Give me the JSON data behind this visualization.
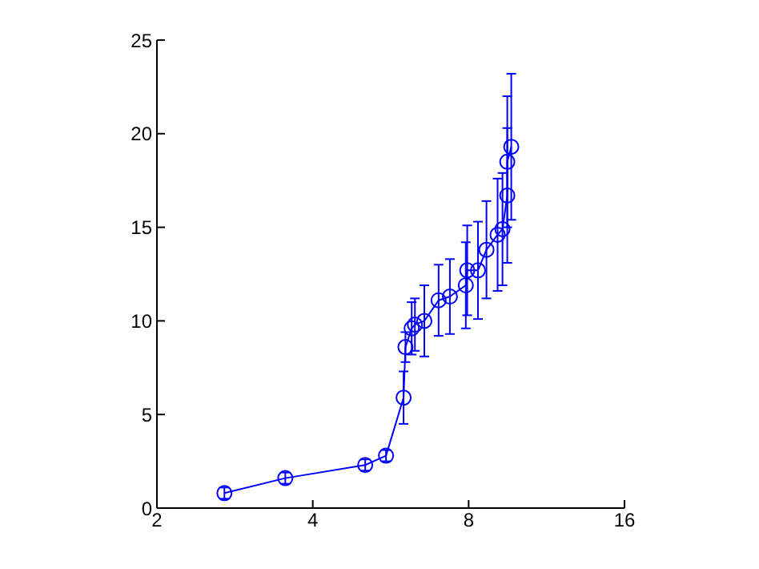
{
  "chart_data": {
    "type": "line",
    "log": "x",
    "xlim": [
      2,
      16
    ],
    "xticks": [
      2,
      4,
      8,
      16
    ],
    "ylim": [
      0,
      25
    ],
    "yticks": [
      0,
      5,
      10,
      15,
      20,
      25
    ],
    "marker": "circle",
    "line_style": "solid",
    "x": [
      2.7,
      3.54,
      5.05,
      5.54,
      5.99,
      6.04,
      6.21,
      6.3,
      6.57,
      7.0,
      7.36,
      7.9,
      7.95,
      8.34,
      8.66,
      9.1,
      9.3,
      9.5,
      9.5,
      9.67
    ],
    "series": [
      {
        "color": "#0000ff",
        "values": [
          0.8,
          1.6,
          2.3,
          2.8,
          5.9,
          8.6,
          9.6,
          9.8,
          10.0,
          11.1,
          11.3,
          11.9,
          12.7,
          12.7,
          13.8,
          14.6,
          14.9,
          16.7,
          18.5,
          19.3
        ],
        "errors": [
          0.3,
          0.3,
          0.3,
          0.3,
          1.4,
          0.8,
          1.4,
          1.4,
          1.9,
          1.9,
          2.0,
          2.3,
          2.4,
          2.6,
          2.6,
          3.0,
          3.0,
          3.6,
          3.5,
          3.9
        ]
      }
    ]
  }
}
